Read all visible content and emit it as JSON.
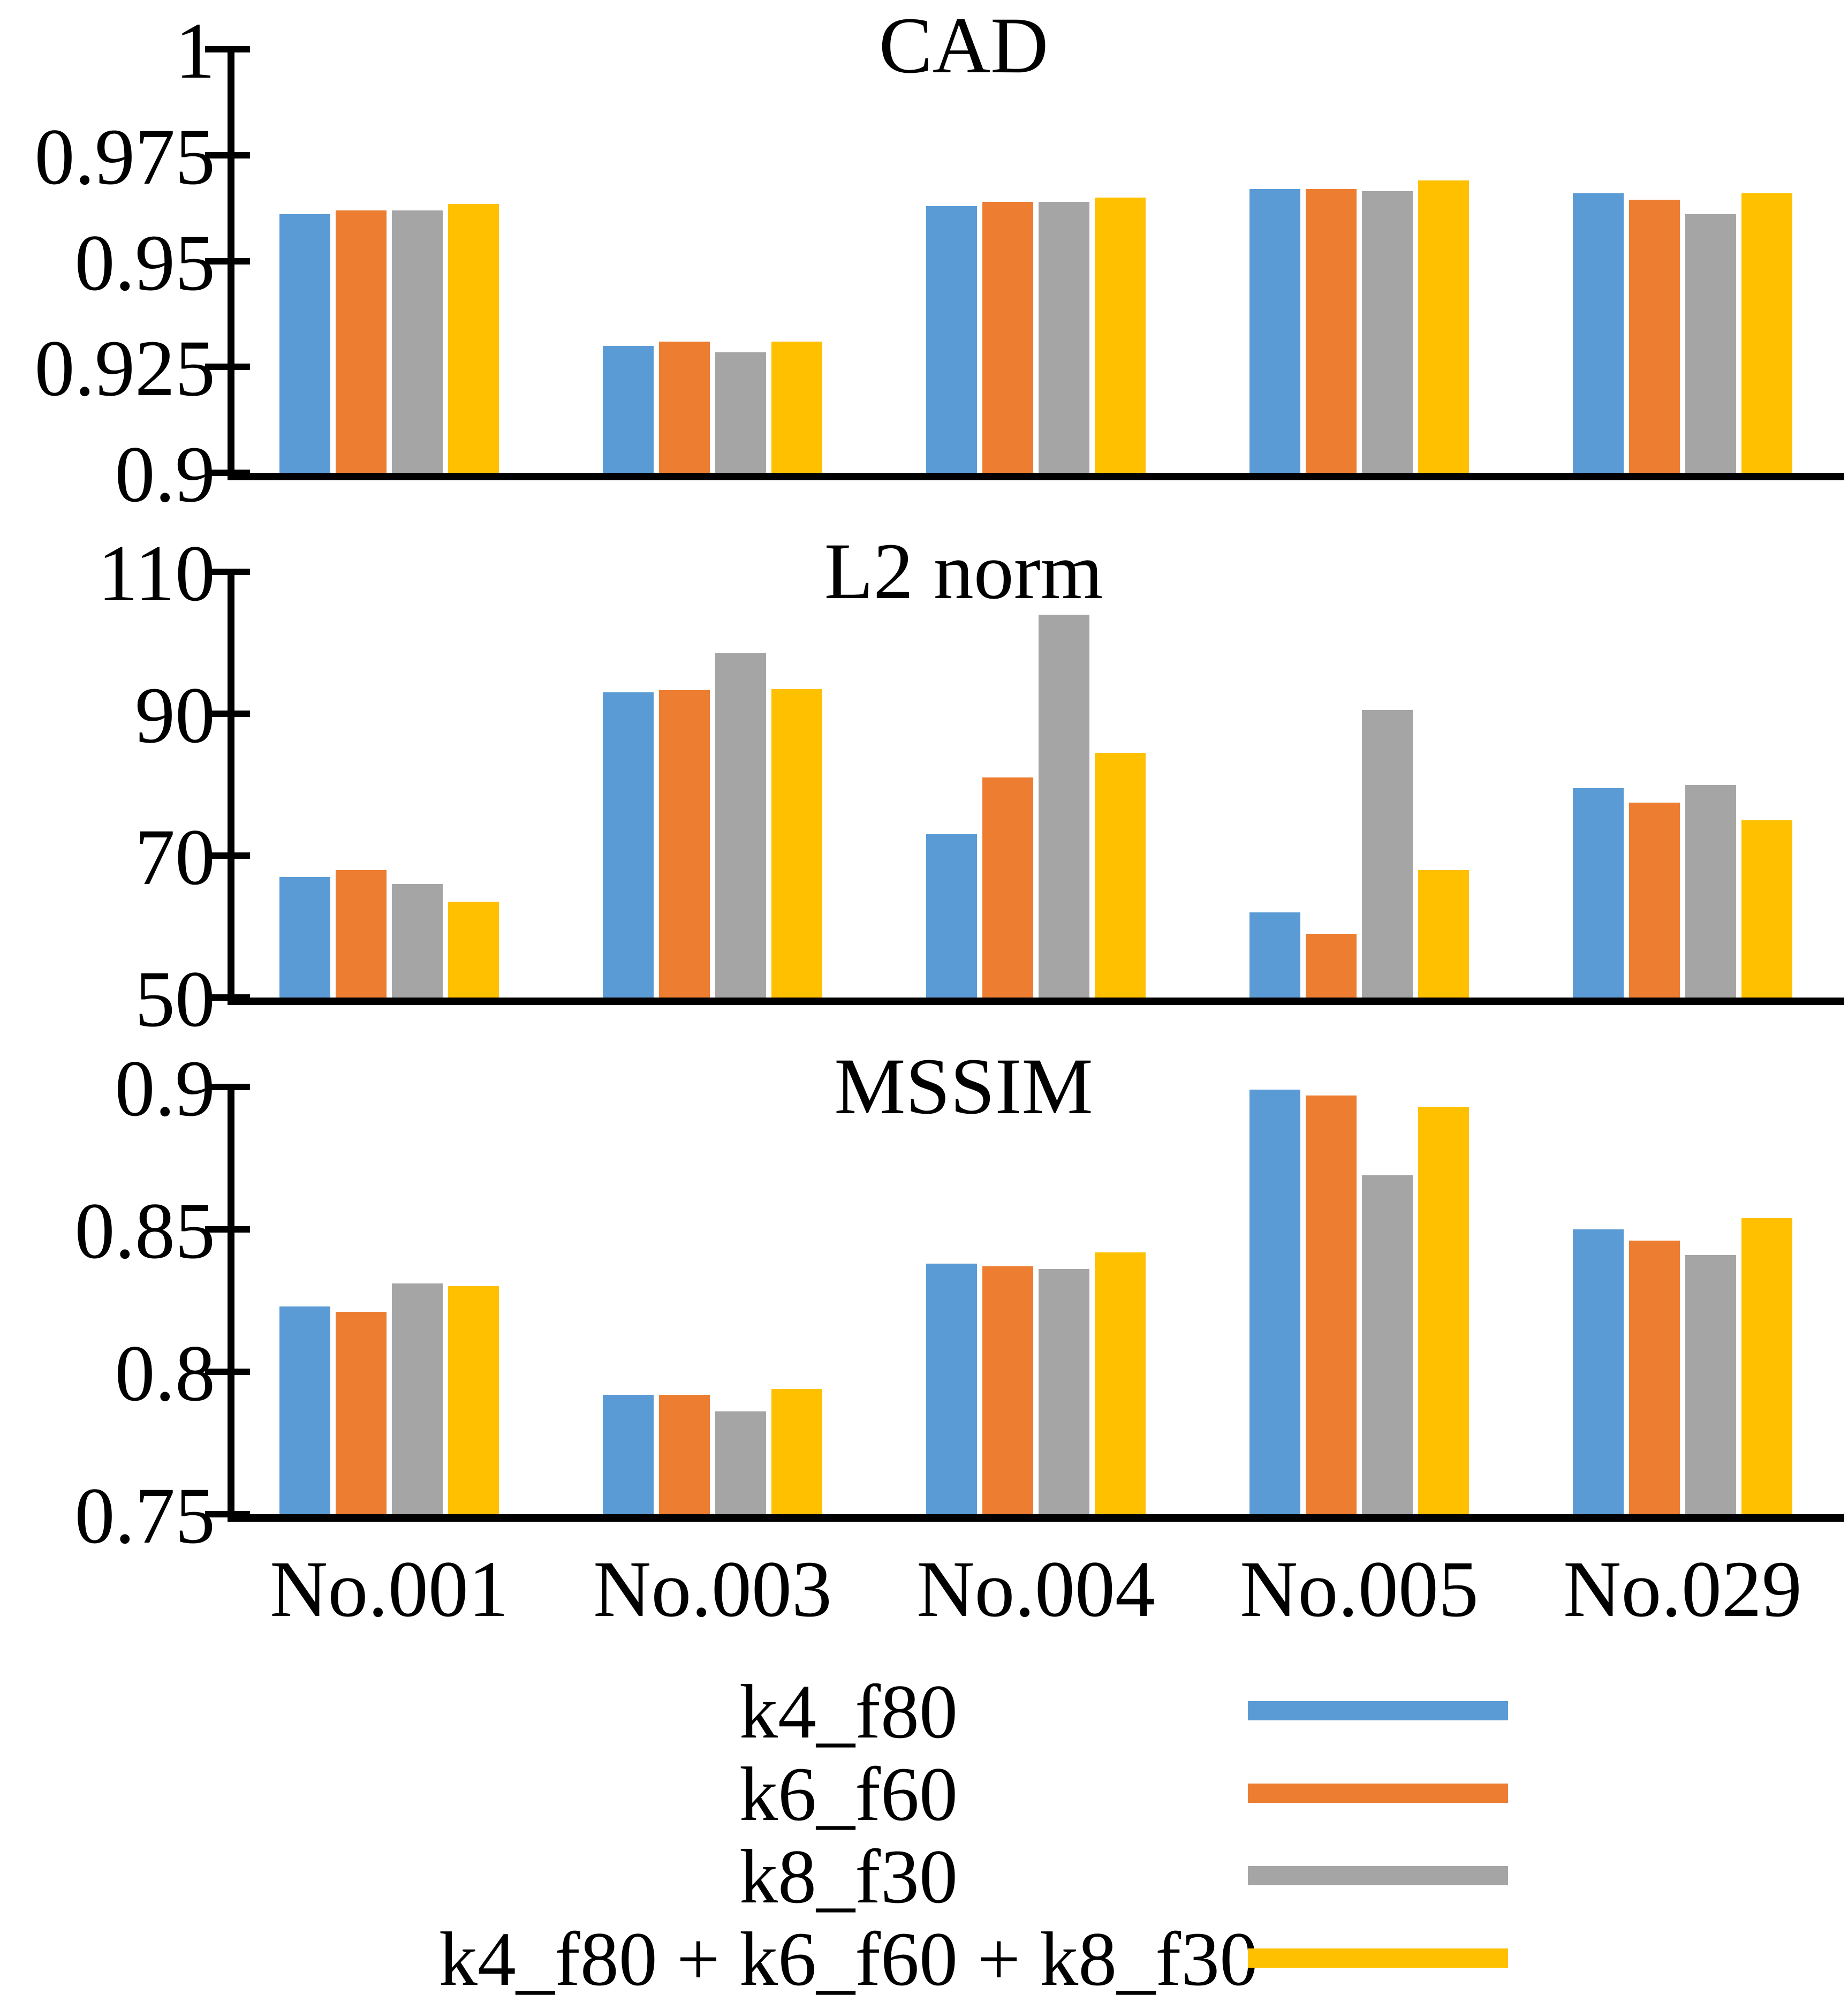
{
  "figure": {
    "background": "#ffffff",
    "text_color": "#000000",
    "axis_color": "#000000"
  },
  "legend": {
    "position": "bottom",
    "items": [
      {
        "label": "k4_f80",
        "color": "#5B9BD5"
      },
      {
        "label": "k6_f60",
        "color": "#ED7D31"
      },
      {
        "label": "k8_f30",
        "color": "#A5A5A5"
      },
      {
        "label": "k4_f80 + k6_f60 + k8_f30",
        "color": "#FFC000"
      }
    ]
  },
  "chart_data": [
    {
      "type": "bar",
      "title": "CAD",
      "xlabel": "",
      "ylabel": "",
      "grid": false,
      "legend_position": "shared-bottom",
      "categories": [
        "No.001",
        "No.003",
        "No.004",
        "No.005",
        "No.029"
      ],
      "ylim": [
        0.9,
        1.0
      ],
      "yticks": [
        1,
        0.975,
        0.95,
        0.925,
        0.9
      ],
      "ytick_labels": [
        "1",
        "0.975",
        "0.95",
        "0.925",
        "0.9"
      ],
      "series": [
        {
          "name": "k4_f80",
          "color": "#5B9BD5",
          "values": [
            0.961,
            0.93,
            0.963,
            0.967,
            0.966
          ]
        },
        {
          "name": "k6_f60",
          "color": "#ED7D31",
          "values": [
            0.962,
            0.931,
            0.964,
            0.967,
            0.9645
          ]
        },
        {
          "name": "k8_f30",
          "color": "#A5A5A5",
          "values": [
            0.962,
            0.9285,
            0.964,
            0.9665,
            0.961
          ]
        },
        {
          "name": "k4_f80 + k6_f60 + k8_f30",
          "color": "#FFC000",
          "values": [
            0.9635,
            0.931,
            0.965,
            0.969,
            0.966
          ]
        }
      ]
    },
    {
      "type": "bar",
      "title": "L2 norm",
      "xlabel": "",
      "ylabel": "",
      "grid": false,
      "legend_position": "shared-bottom",
      "categories": [
        "No.001",
        "No.003",
        "No.004",
        "No.005",
        "No.029"
      ],
      "ylim": [
        50,
        110
      ],
      "yticks": [
        110,
        90,
        70,
        50
      ],
      "ytick_labels": [
        "110",
        "90",
        "70",
        "50"
      ],
      "series": [
        {
          "name": "k4_f80",
          "color": "#5B9BD5",
          "values": [
            67,
            93,
            73,
            62,
            79.5
          ]
        },
        {
          "name": "k6_f60",
          "color": "#ED7D31",
          "values": [
            68,
            93.3,
            81,
            59,
            77.5
          ]
        },
        {
          "name": "k8_f30",
          "color": "#A5A5A5",
          "values": [
            66,
            98.5,
            104,
            90.5,
            80
          ]
        },
        {
          "name": "k4_f80 + k6_f60 + k8_f30",
          "color": "#FFC000",
          "values": [
            63.5,
            93.5,
            84.5,
            68,
            75
          ]
        }
      ]
    },
    {
      "type": "bar",
      "title": "MSSIM",
      "xlabel": "",
      "ylabel": "",
      "grid": false,
      "legend_position": "shared-bottom",
      "categories": [
        "No.001",
        "No.003",
        "No.004",
        "No.005",
        "No.029"
      ],
      "ylim": [
        0.75,
        0.9
      ],
      "yticks": [
        0.9,
        0.85,
        0.8,
        0.75
      ],
      "ytick_labels": [
        "0.9",
        "0.85",
        "0.8",
        "0.75"
      ],
      "series": [
        {
          "name": "k4_f80",
          "color": "#5B9BD5",
          "values": [
            0.823,
            0.792,
            0.838,
            0.899,
            0.85
          ]
        },
        {
          "name": "k6_f60",
          "color": "#ED7D31",
          "values": [
            0.821,
            0.792,
            0.837,
            0.897,
            0.846
          ]
        },
        {
          "name": "k8_f30",
          "color": "#A5A5A5",
          "values": [
            0.831,
            0.786,
            0.836,
            0.869,
            0.841
          ]
        },
        {
          "name": "k4_f80 + k6_f60 + k8_f30",
          "color": "#FFC000",
          "values": [
            0.83,
            0.794,
            0.842,
            0.893,
            0.854
          ]
        }
      ]
    }
  ]
}
